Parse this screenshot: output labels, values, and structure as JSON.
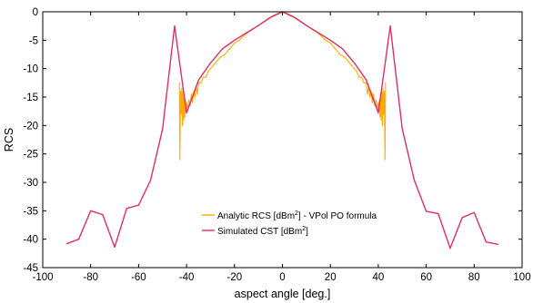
{
  "chart_data": {
    "type": "line",
    "xlabel": "aspect angle [deg.]",
    "ylabel": "RCS",
    "xlim": [
      -100,
      100
    ],
    "ylim": [
      -45,
      0
    ],
    "xticks": [
      -100,
      -80,
      -60,
      -40,
      -20,
      0,
      20,
      40,
      60,
      80,
      100
    ],
    "yticks": [
      0,
      -5,
      -10,
      -15,
      -20,
      -25,
      -30,
      -35,
      -40,
      -45
    ],
    "xtick_labels": [
      "-100",
      "-80",
      "-60",
      "-40",
      "-20",
      "0",
      "20",
      "40",
      "60",
      "80",
      "100"
    ],
    "ytick_labels": [
      "0",
      "-5",
      "-10",
      "-15",
      "-20",
      "-25",
      "-30",
      "-35",
      "-40",
      "-45"
    ],
    "grid": false,
    "legend_position": "bottom-center",
    "series": [
      {
        "name": "Analytic RCS [dBm²] - VPol PO formula",
        "legend_text": {
          "pre": "Analytic RCS [dBm",
          "sup": "2",
          "post": "] - VPol PO formula"
        },
        "color": "#ffaa00",
        "x": [
          -43,
          -42.8,
          -42.5,
          -42.2,
          -42,
          -41.7,
          -41.5,
          -41.2,
          -41,
          -40.7,
          -40.5,
          -40.2,
          -40,
          -39.5,
          -39,
          -38.5,
          -38,
          -37.5,
          -37,
          -36.5,
          -36,
          -35.5,
          -35,
          -34,
          -33,
          -32,
          -31,
          -30,
          -28,
          -26,
          -24,
          -22,
          -20,
          -18,
          -16,
          -14,
          -12,
          -10,
          -8,
          -6,
          -4,
          -2,
          0,
          2,
          4,
          6,
          8,
          10,
          12,
          14,
          16,
          18,
          20,
          22,
          24,
          26,
          28,
          30,
          31,
          32,
          33,
          34,
          35,
          35.5,
          36,
          36.5,
          37,
          37.5,
          38,
          38.5,
          39,
          39.5,
          40,
          40.2,
          40.5,
          40.7,
          41,
          41.2,
          41.5,
          41.7,
          42,
          42.2,
          42.5,
          42.8,
          43
        ],
        "y": [
          -12.5,
          -26,
          -14,
          -18,
          -13.5,
          -20,
          -14,
          -19,
          -15,
          -18.5,
          -15.5,
          -17.5,
          -16,
          -17,
          -15.5,
          -16.5,
          -14.5,
          -16,
          -14,
          -15,
          -13,
          -14.5,
          -12.5,
          -12.5,
          -11.5,
          -11.5,
          -10.5,
          -10,
          -9,
          -8,
          -7.5,
          -6.5,
          -5.5,
          -5,
          -4.2,
          -3.5,
          -3,
          -2.4,
          -1.8,
          -1.2,
          -0.7,
          -0.3,
          0,
          -0.3,
          -0.7,
          -1.2,
          -1.8,
          -2.4,
          -3,
          -3.5,
          -4.2,
          -5,
          -5.5,
          -6.5,
          -7.5,
          -8,
          -9,
          -10,
          -10.5,
          -11.5,
          -11.5,
          -12.5,
          -12.5,
          -14.5,
          -13,
          -15,
          -14,
          -16,
          -14.5,
          -16.5,
          -15.5,
          -17,
          -16,
          -17.5,
          -15.5,
          -18.5,
          -15,
          -19,
          -14,
          -20,
          -13.5,
          -18,
          -14,
          -26,
          -12.5
        ]
      },
      {
        "name": "Simulated CST [dBm²]",
        "legend_text": {
          "pre": "Simulated CST [dBm",
          "sup": "2",
          "post": "]"
        },
        "color": "#e02d6d",
        "x": [
          -90,
          -85,
          -80,
          -75,
          -70,
          -65,
          -60,
          -55,
          -50,
          -45,
          -40,
          -35,
          -30,
          -25,
          -20,
          -15,
          -10,
          -5,
          0,
          5,
          10,
          15,
          20,
          25,
          30,
          35,
          40,
          45,
          50,
          55,
          60,
          65,
          70,
          75,
          80,
          85,
          90
        ],
        "y": [
          -40.8,
          -40,
          -35,
          -35.7,
          -41.4,
          -34.6,
          -34,
          -29.6,
          -20.6,
          -2.5,
          -17.8,
          -12,
          -9,
          -6.5,
          -5,
          -3.7,
          -2.4,
          -1,
          0,
          -1,
          -2.4,
          -3.7,
          -5,
          -6.5,
          -9,
          -12,
          -17.8,
          -2.5,
          -20.6,
          -29.6,
          -35.1,
          -35.5,
          -41.6,
          -36.2,
          -35.3,
          -40.5,
          -40.9
        ]
      }
    ]
  }
}
